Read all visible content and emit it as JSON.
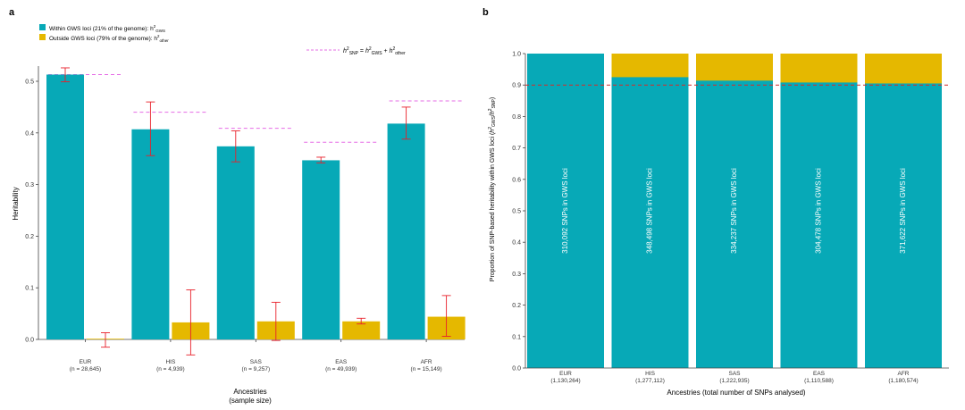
{
  "colors": {
    "teal": "#07A9B7",
    "gold": "#E5B800",
    "error_bar": "#E8202A",
    "dashed_pink": "#E66CE6",
    "dashed_red": "#D22E2E",
    "axis": "#444444",
    "label_inside": "#ffffff"
  },
  "chart_data": [
    {
      "panel": "a",
      "type": "bar",
      "legend": {
        "within": {
          "text": "Within GWS loci (21% of the genome): h",
          "sup": "2",
          "sub": "GWS"
        },
        "outside": {
          "text": "Outside GWS loci (79% of the genome): h",
          "sup": "2",
          "sub": "other"
        },
        "snp_formula": {
          "h1": "h",
          "sup1": "2",
          "sub1": "SNP",
          "eq": " = ",
          "h2": "h",
          "sup2": "2",
          "sub2": "GWS",
          "plus": " + ",
          "h3": "h",
          "sup3": "2",
          "sub3": "other"
        }
      },
      "xlabel": "Ancestries",
      "xlabel2": "(sample size)",
      "ylabel": "Heritability",
      "ylim": [
        0.0,
        0.55
      ],
      "yticks": [
        0.0,
        0.1,
        0.2,
        0.3,
        0.4,
        0.5
      ],
      "ytick_labels": [
        "0.0",
        "0.1",
        "0.2",
        "0.3",
        "0.4",
        "0.5"
      ],
      "categories": [
        "EUR",
        "HIS",
        "SAS",
        "EAS",
        "AFR"
      ],
      "sample_sizes": [
        "(n = 28,645)",
        "(n = 4,939)",
        "(n = 9,257)",
        "(n = 49,939)",
        "(n = 15,149)"
      ],
      "series": [
        {
          "name": "Within GWS loci",
          "values": [
            0.513,
            0.407,
            0.374,
            0.347,
            0.418
          ],
          "err_low": [
            0.499,
            0.356,
            0.344,
            0.342,
            0.388
          ],
          "err_high": [
            0.526,
            0.46,
            0.404,
            0.353,
            0.45
          ]
        },
        {
          "name": "Outside GWS loci",
          "values": [
            0.0,
            0.033,
            0.035,
            0.035,
            0.044
          ],
          "err_low": [
            -0.015,
            -0.03,
            -0.002,
            0.03,
            0.006
          ],
          "err_high": [
            0.013,
            0.096,
            0.072,
            0.041,
            0.085
          ]
        }
      ],
      "h2_snp": [
        0.513,
        0.44,
        0.409,
        0.382,
        0.462
      ]
    },
    {
      "panel": "b",
      "type": "bar",
      "stacked": true,
      "xlabel": "Ancestries (total number of SNPs analysed)",
      "ylabel": {
        "pre": "Proportion of SNP-based heritability within GWS loci (",
        "h1": "h",
        "sup1": "2",
        "sub1": "GWS",
        "slash": "/",
        "h2": "h",
        "sup2": "2",
        "sub2": "SNP",
        "post": ")"
      },
      "ylim": [
        0.0,
        1.0
      ],
      "yticks": [
        0.0,
        0.1,
        0.2,
        0.3,
        0.4,
        0.5,
        0.6,
        0.7,
        0.8,
        0.9,
        1.0
      ],
      "ytick_labels": [
        "0.0",
        "0.1",
        "0.2",
        "0.3",
        "0.4",
        "0.5",
        "0.6",
        "0.7",
        "0.8",
        "0.9",
        "1.0"
      ],
      "categories": [
        "EUR",
        "HIS",
        "SAS",
        "EAS",
        "AFR"
      ],
      "totals": [
        "(1,130,264)",
        "(1,277,112)",
        "(1,222,935)",
        "(1,110,588)",
        "(1,180,574)"
      ],
      "values": [
        1.0,
        0.925,
        0.914,
        0.908,
        0.905
      ],
      "bar_labels": [
        "310,092 SNPs in GWS loci",
        "348,498 SNPs in GWS loci",
        "334,237 SNPs in GWS loci",
        "304,478 SNPs in GWS loci",
        "371,622 SNPs in GWS loci"
      ],
      "reference_line": 0.9
    }
  ],
  "panel_labels": {
    "a": "a",
    "b": "b"
  }
}
